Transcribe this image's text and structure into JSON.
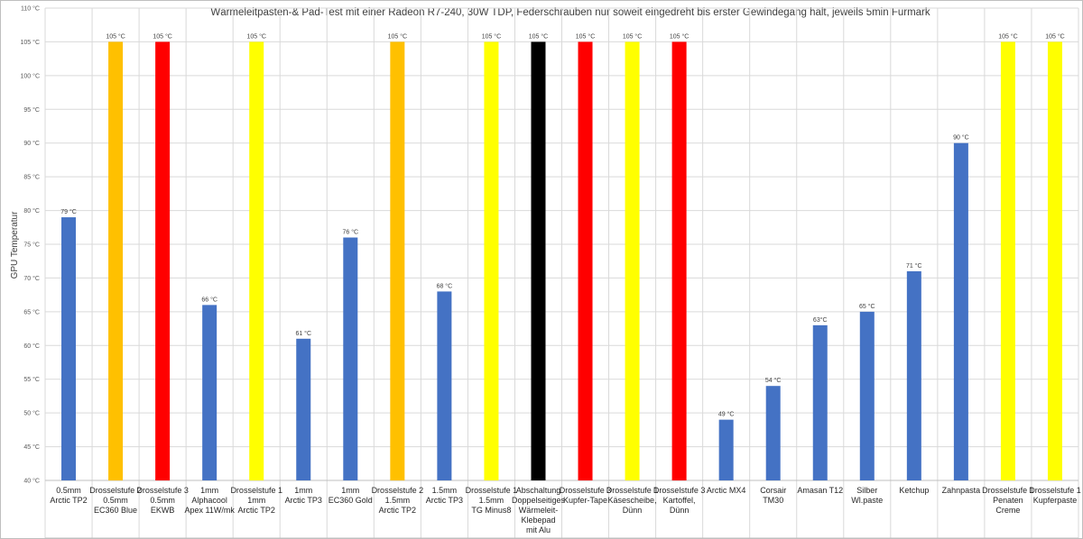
{
  "chart_data": {
    "type": "bar",
    "title": "Wärmeleitpasten-& Pad-Test mit einer Radeon R7-240, 30W TDP, Federschrauben nur soweit eingedreht bis erster Gewindegang hält, jeweils 5min Furmark",
    "xlabel": "",
    "ylabel": "GPU Temperatur",
    "ylim": [
      40,
      110
    ],
    "y_ticks": [
      "40 °C",
      "45 °C",
      "50 °C",
      "55 °C",
      "60 °C",
      "65 °C",
      "70 °C",
      "75 °C",
      "80 °C",
      "85 °C",
      "90 °C",
      "95 °C",
      "100 °C",
      "105 °C",
      "110 °C"
    ],
    "grid": true,
    "categories": [
      {
        "lines": [
          "0.5mm",
          "Arctic TP2"
        ]
      },
      {
        "lines": [
          "Drosselstufe 2",
          "0.5mm",
          "EC360 Blue"
        ]
      },
      {
        "lines": [
          "Drosselstufe 3",
          "0.5mm",
          "EKWB"
        ]
      },
      {
        "lines": [
          "1mm",
          "Alphacool",
          "Apex 11W/mk"
        ]
      },
      {
        "lines": [
          "Drosselstufe 1",
          "1mm",
          "Arctic TP2"
        ]
      },
      {
        "lines": [
          "1mm",
          "Arctic TP3"
        ]
      },
      {
        "lines": [
          "1mm",
          "EC360 Gold"
        ]
      },
      {
        "lines": [
          "Drosselstufe 2",
          "1.5mm",
          "Arctic TP2"
        ]
      },
      {
        "lines": [
          "1.5mm",
          "Arctic TP3"
        ]
      },
      {
        "lines": [
          "Drosselstufe 1",
          "1.5mm",
          "TG Minus8"
        ]
      },
      {
        "lines": [
          "Abschaltung",
          "Doppelseitiges",
          "Wärmeleit-",
          "Klebepad",
          "mit Alu"
        ]
      },
      {
        "lines": [
          "Drosselstufe 3",
          "Kupfer-Tape"
        ]
      },
      {
        "lines": [
          "Drosselstufe 1",
          "Käsescheibe,",
          "Dünn"
        ]
      },
      {
        "lines": [
          "Drosselstufe 3",
          "Kartoffel,",
          "Dünn"
        ]
      },
      {
        "lines": [
          "Arctic MX4"
        ]
      },
      {
        "lines": [
          "Corsair",
          "TM30"
        ]
      },
      {
        "lines": [
          "Amasan T12"
        ]
      },
      {
        "lines": [
          "Silber",
          "Wl.paste"
        ]
      },
      {
        "lines": [
          "Ketchup"
        ]
      },
      {
        "lines": [
          "Zahnpasta"
        ]
      },
      {
        "lines": [
          "Drosselstufe 1",
          "Penaten",
          "Creme"
        ]
      },
      {
        "lines": [
          "Drosselstufe 1",
          "Kupferpaste"
        ]
      }
    ],
    "values": [
      79,
      105,
      105,
      66,
      105,
      61,
      76,
      105,
      68,
      105,
      105,
      105,
      105,
      105,
      49,
      54,
      63,
      65,
      71,
      90,
      105,
      105
    ],
    "data_labels": [
      "79 °C",
      "105 °C",
      "105 °C",
      "66 °C",
      "105 °C",
      "61 °C",
      "76 °C",
      "105 °C",
      "68 °C",
      "105 °C",
      "105 °C",
      "105 °C",
      "105 °C",
      "105 °C",
      "49 °C",
      "54 °C",
      "63°C",
      "65 °C",
      "71 °C",
      "90 °C",
      "105 °C",
      "105 °C"
    ],
    "bar_colors": [
      "#4472c4",
      "#ffc000",
      "#ff0000",
      "#4472c4",
      "#ffff00",
      "#4472c4",
      "#4472c4",
      "#ffc000",
      "#4472c4",
      "#ffff00",
      "#000000",
      "#ff0000",
      "#ffff00",
      "#ff0000",
      "#4472c4",
      "#4472c4",
      "#4472c4",
      "#4472c4",
      "#4472c4",
      "#4472c4",
      "#ffff00",
      "#ffff00"
    ]
  }
}
